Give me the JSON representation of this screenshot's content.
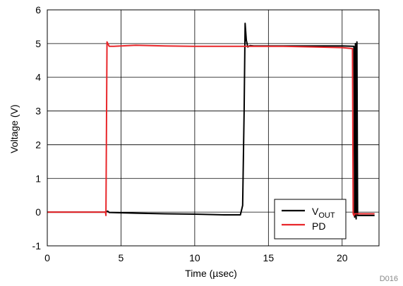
{
  "chart_data": {
    "type": "line",
    "xlabel": "Time (µsec)",
    "ylabel": "Voltage (V)",
    "xlim": [
      0,
      22.5
    ],
    "ylim": [
      -1,
      6
    ],
    "xticks": [
      0,
      5,
      10,
      15,
      20
    ],
    "yticks": [
      -1,
      0,
      1,
      2,
      3,
      4,
      5,
      6
    ],
    "x_tick_labels": [
      "0",
      "5",
      "10",
      "15",
      "20"
    ],
    "y_tick_labels": [
      "-1",
      "0",
      "1",
      "2",
      "3",
      "4",
      "5",
      "6"
    ],
    "grid": true,
    "legend_position": "bottom-right",
    "series": [
      {
        "name": "VOUT",
        "legend_main": "V",
        "legend_sub": "OUT",
        "color": "#000000",
        "x": [
          0,
          3.9,
          4.0,
          4.1,
          4.2,
          6,
          8,
          10,
          12,
          13.1,
          13.25,
          13.35,
          13.42,
          13.5,
          13.6,
          13.75,
          14,
          16,
          18,
          20,
          20.8,
          20.85,
          20.9,
          20.95,
          21.0,
          21.05,
          22.2
        ],
        "y": [
          0,
          0,
          0.02,
          0.03,
          -0.01,
          -0.03,
          -0.05,
          -0.06,
          -0.08,
          -0.08,
          0.2,
          3.0,
          5.6,
          5.1,
          4.9,
          4.94,
          4.93,
          4.93,
          4.93,
          4.93,
          4.92,
          -0.15,
          5.0,
          -0.2,
          5.05,
          -0.1,
          -0.1
        ]
      },
      {
        "name": "PD",
        "color": "#e8262a",
        "x": [
          0,
          3.95,
          3.98,
          4.05,
          4.2,
          4.5,
          6,
          8,
          10,
          12,
          13.5,
          14,
          16,
          18,
          20,
          20.7,
          20.75,
          20.8,
          20.85,
          22.2
        ],
        "y": [
          0,
          0,
          -0.1,
          5.05,
          4.92,
          4.92,
          4.95,
          4.93,
          4.92,
          4.92,
          4.92,
          4.92,
          4.92,
          4.9,
          4.88,
          4.85,
          -0.05,
          -0.1,
          -0.05,
          -0.05
        ]
      }
    ]
  },
  "figure_id": "D016"
}
